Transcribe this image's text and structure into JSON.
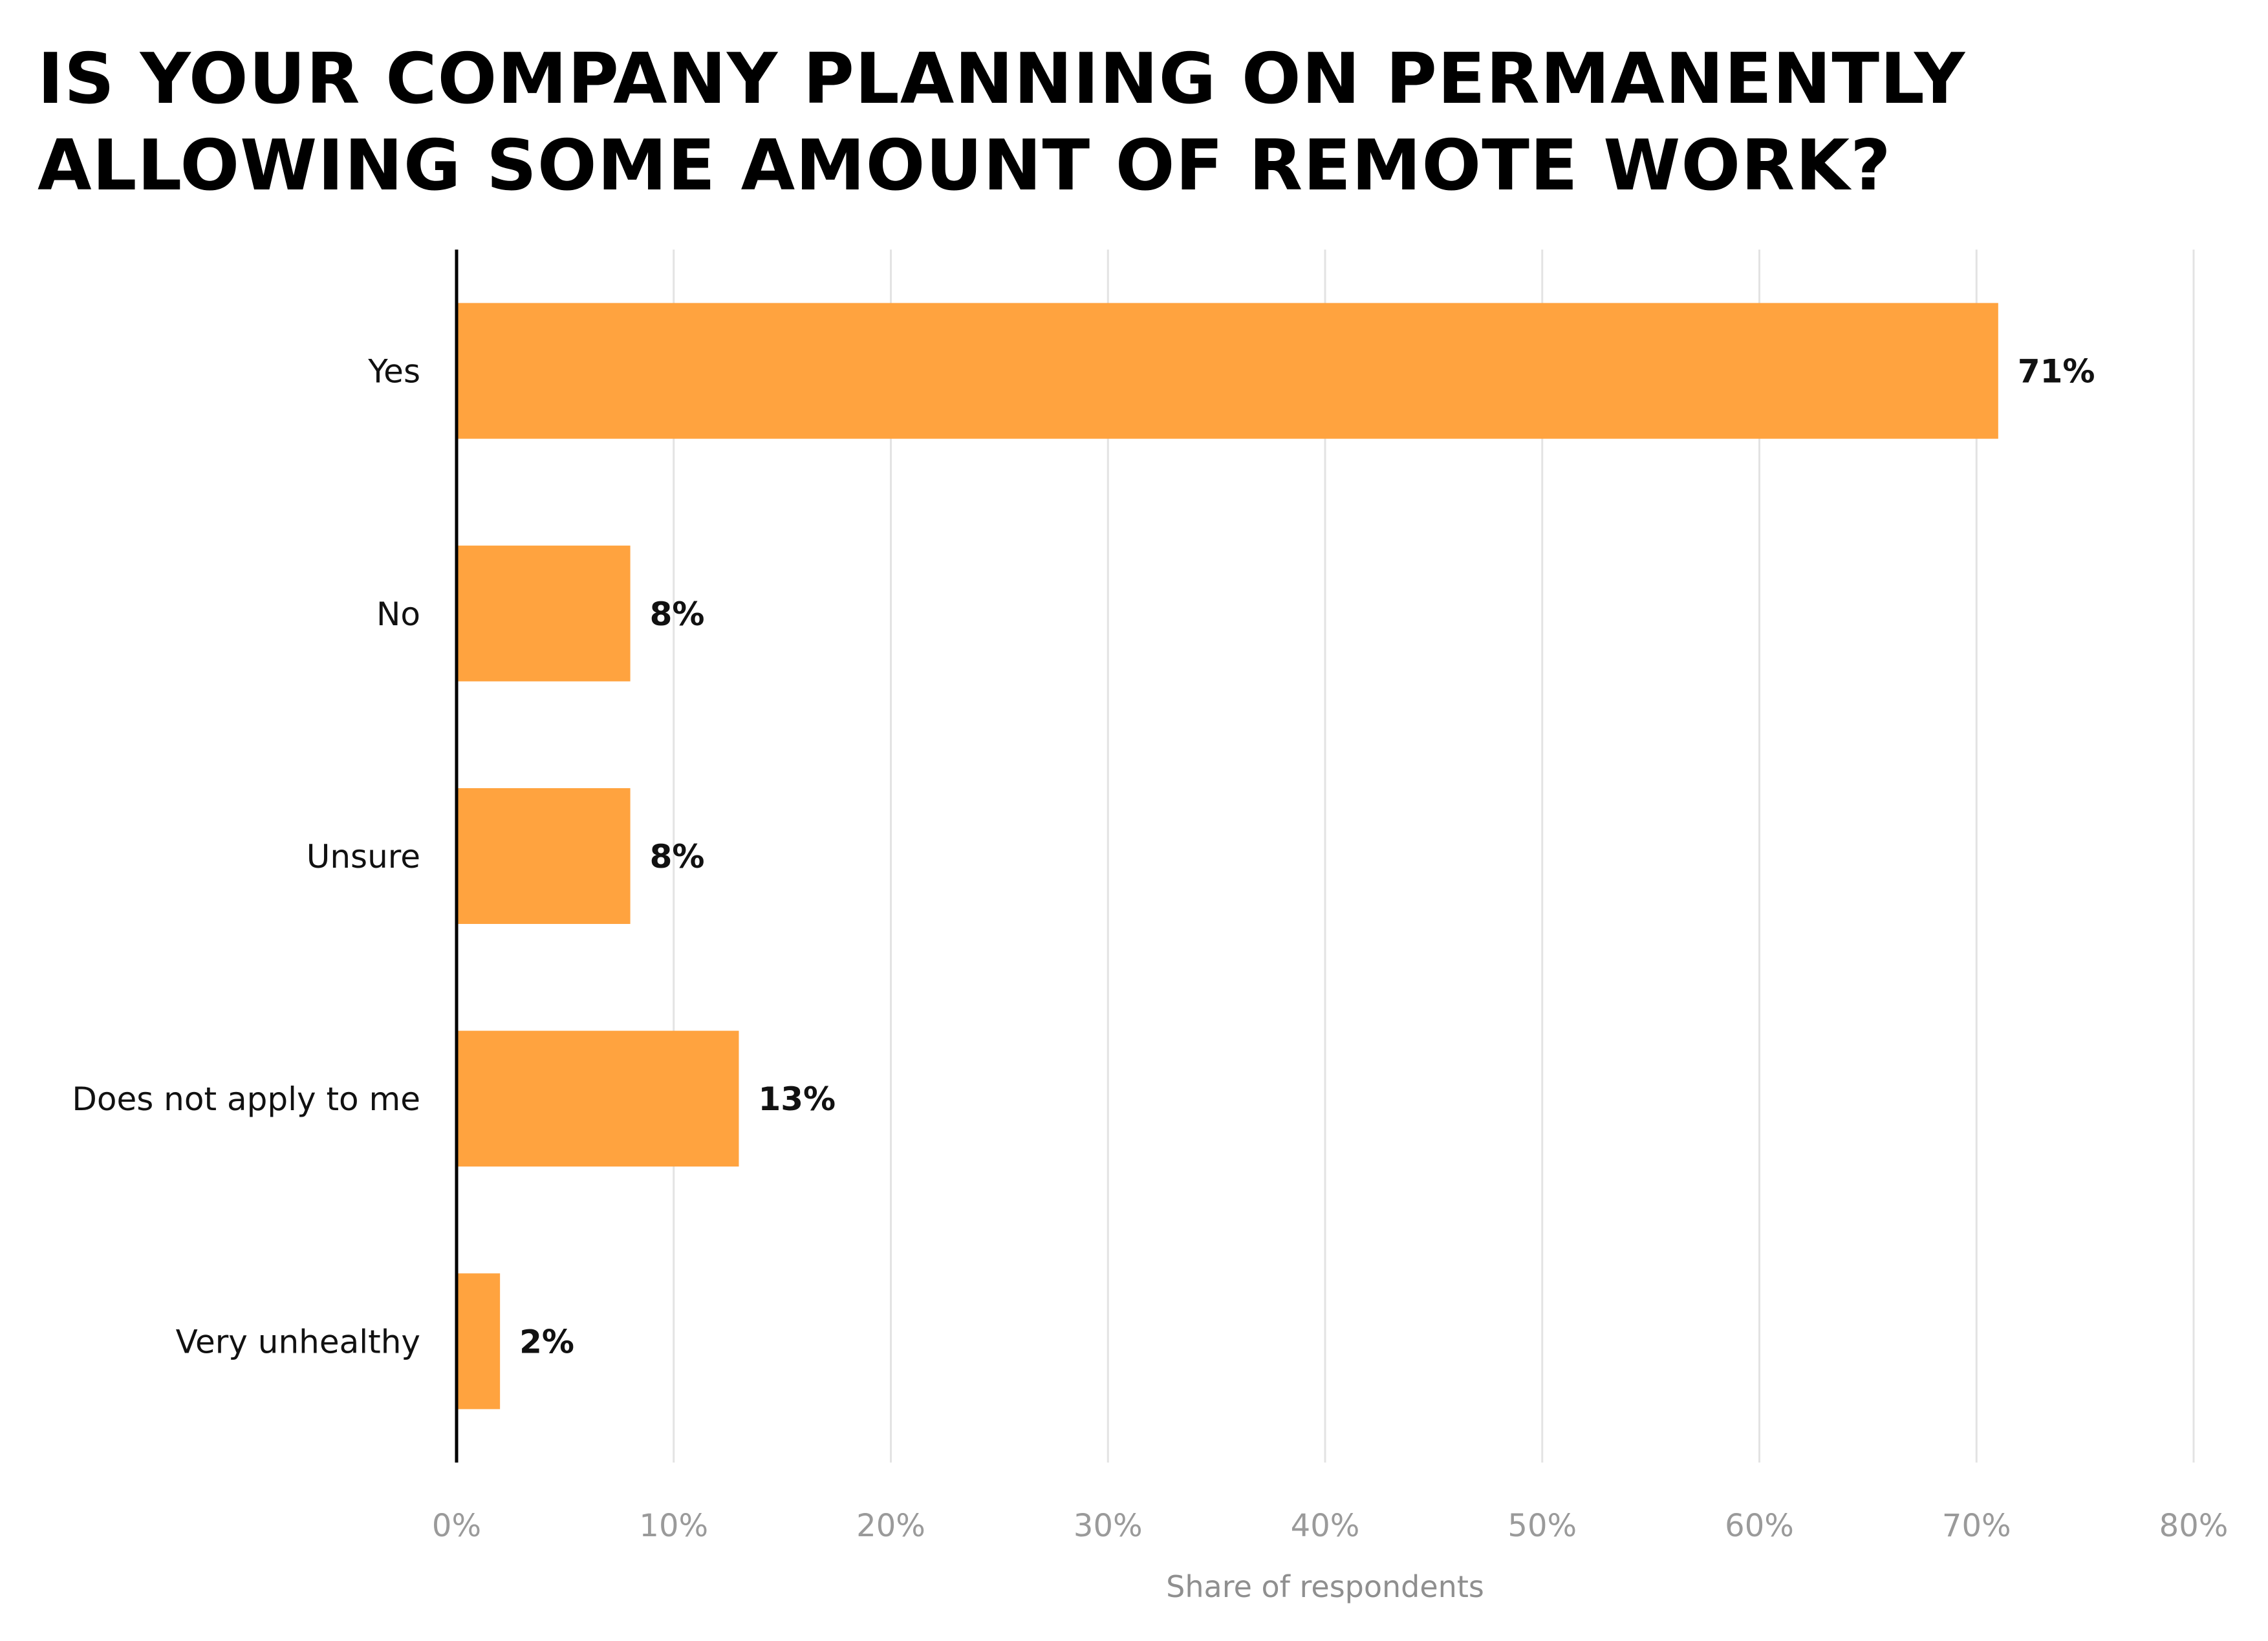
{
  "chart_data": {
    "type": "bar",
    "orientation": "horizontal",
    "title": "IS YOUR COMPANY PLANNING ON PERMANENTLY ALLOWING SOME AMOUNT OF REMOTE WORK?",
    "categories": [
      "Yes",
      "No",
      "Unsure",
      "Does not apply to me",
      "Very unhealthy"
    ],
    "values": [
      71,
      8,
      8,
      13,
      2
    ],
    "value_labels": [
      "71%",
      "8%",
      "8%",
      "13%",
      "2%"
    ],
    "xlabel": "Share of respondents",
    "ylabel": "",
    "xlim": [
      0,
      80
    ],
    "x_ticks": [
      "0%",
      "10%",
      "20%",
      "30%",
      "40%",
      "50%",
      "60%",
      "70%",
      "80%"
    ],
    "grid": "vertical",
    "legend": "none",
    "colors": {
      "bar": "#FFA33F",
      "grid": "#E3E3E3",
      "axis": "#000000"
    }
  }
}
